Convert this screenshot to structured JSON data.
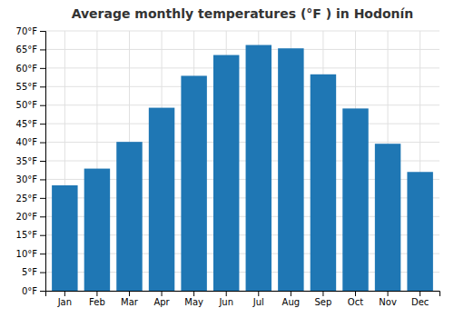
{
  "chart_data": {
    "type": "bar",
    "title": "Average monthly temperatures (°F ) in Hodonín",
    "categories": [
      "Jan",
      "Feb",
      "Mar",
      "Apr",
      "May",
      "Jun",
      "Jul",
      "Aug",
      "Sep",
      "Oct",
      "Nov",
      "Dec"
    ],
    "values": [
      28.4,
      32.9,
      40.1,
      49.3,
      57.9,
      63.5,
      66.2,
      65.3,
      58.3,
      49.1,
      39.6,
      32.0
    ],
    "ylim": [
      0,
      70
    ],
    "yticks": [
      {
        "value": 0,
        "label": "0°F"
      },
      {
        "value": 5,
        "label": "5°F"
      },
      {
        "value": 10,
        "label": "10°F"
      },
      {
        "value": 15,
        "label": "15°F"
      },
      {
        "value": 20,
        "label": "20°F"
      },
      {
        "value": 25,
        "label": "25°F"
      },
      {
        "value": 30,
        "label": "30°F"
      },
      {
        "value": 35,
        "label": "35°F"
      },
      {
        "value": 40,
        "label": "40°F"
      },
      {
        "value": 45,
        "label": "45°F"
      },
      {
        "value": 50,
        "label": "50°F"
      },
      {
        "value": 55,
        "label": "55°F"
      },
      {
        "value": 60,
        "label": "60°F"
      },
      {
        "value": 65,
        "label": "65°F"
      },
      {
        "value": 70,
        "label": "70°F"
      }
    ],
    "grid": true
  }
}
